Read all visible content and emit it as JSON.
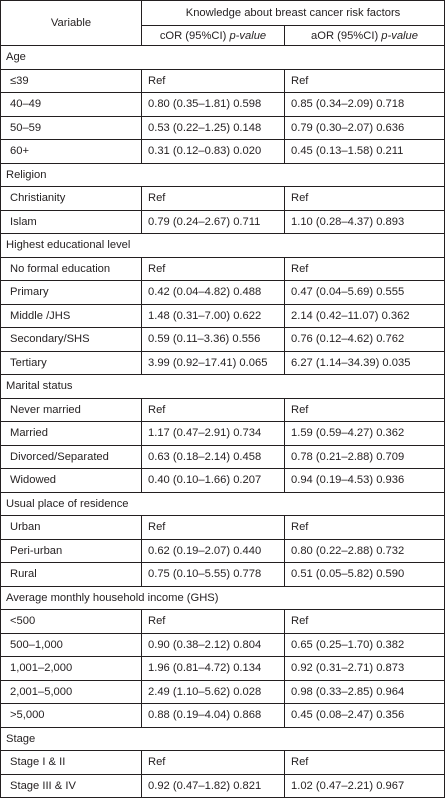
{
  "header": {
    "variable": "Variable",
    "group": "Knowledge about breast cancer risk factors",
    "col_cor": "cOR (95%CI) ",
    "col_aor": "aOR (95%CI) ",
    "pvalue": "p-value"
  },
  "rows": [
    {
      "type": "section",
      "label": "Age"
    },
    {
      "type": "data",
      "label": "≤39",
      "cor": "Ref",
      "aor": "Ref"
    },
    {
      "type": "data",
      "label": "40–49",
      "cor": "0.80 (0.35–1.81) 0.598",
      "aor": "0.85 (0.34–2.09) 0.718"
    },
    {
      "type": "data",
      "label": "50–59",
      "cor": "0.53 (0.22–1.25) 0.148",
      "aor": "0.79 (0.30–2.07) 0.636"
    },
    {
      "type": "data",
      "label": "60+",
      "cor": "0.31 (0.12–0.83) 0.020",
      "aor": "0.45 (0.13–1.58) 0.211"
    },
    {
      "type": "section",
      "label": "Religion"
    },
    {
      "type": "data",
      "label": "Christianity",
      "cor": "Ref",
      "aor": "Ref"
    },
    {
      "type": "data",
      "label": "Islam",
      "cor": "0.79 (0.24–2.67) 0.711",
      "aor": "1.10 (0.28–4.37) 0.893"
    },
    {
      "type": "section",
      "label": "Highest educational level"
    },
    {
      "type": "data",
      "label": "No formal education",
      "cor": "Ref",
      "aor": "Ref"
    },
    {
      "type": "data",
      "label": "Primary",
      "cor": "0.42 (0.04–4.82) 0.488",
      "aor": "0.47 (0.04–5.69) 0.555"
    },
    {
      "type": "data",
      "label": "Middle /JHS",
      "cor": "1.48 (0.31–7.00) 0.622",
      "aor": "2.14 (0.42–11.07) 0.362"
    },
    {
      "type": "data",
      "label": "Secondary/SHS",
      "cor": "0.59 (0.11–3.36) 0.556",
      "aor": "0.76 (0.12–4.62) 0.762"
    },
    {
      "type": "data",
      "label": "Tertiary",
      "cor": "3.99 (0.92–17.41) 0.065",
      "aor": "6.27 (1.14–34.39) 0.035"
    },
    {
      "type": "section",
      "label": "Marital status"
    },
    {
      "type": "data",
      "label": "Never married",
      "cor": "Ref",
      "aor": "Ref"
    },
    {
      "type": "data",
      "label": "Married",
      "cor": "1.17 (0.47–2.91) 0.734",
      "aor": "1.59 (0.59–4.27) 0.362"
    },
    {
      "type": "data",
      "label": "Divorced/Separated",
      "cor": "0.63 (0.18–2.14) 0.458",
      "aor": "0.78 (0.21–2.88) 0.709"
    },
    {
      "type": "data",
      "label": "Widowed",
      "cor": "0.40 (0.10–1.66) 0.207",
      "aor": "0.94 (0.19–4.53) 0.936"
    },
    {
      "type": "section",
      "label": "Usual place of residence"
    },
    {
      "type": "data",
      "label": "Urban",
      "cor": "Ref",
      "aor": "Ref"
    },
    {
      "type": "data",
      "label": "Peri-urban",
      "cor": "0.62 (0.19–2.07) 0.440",
      "aor": "0.80 (0.22–2.88) 0.732"
    },
    {
      "type": "data",
      "label": "Rural",
      "cor": "0.75 (0.10–5.55) 0.778",
      "aor": "0.51 (0.05–5.82) 0.590"
    },
    {
      "type": "section",
      "label": "Average monthly household income (GHS)"
    },
    {
      "type": "data",
      "label": "<500",
      "cor": "Ref",
      "aor": "Ref"
    },
    {
      "type": "data",
      "label": "500–1,000",
      "cor": "0.90 (0.38–2.12) 0.804",
      "aor": "0.65 (0.25–1.70) 0.382"
    },
    {
      "type": "data",
      "label": "1,001–2,000",
      "cor": "1.96 (0.81–4.72) 0.134",
      "aor": "0.92 (0.31–2.71) 0.873"
    },
    {
      "type": "data",
      "label": "2,001–5,000",
      "cor": "2.49 (1.10–5.62) 0.028",
      "aor": "0.98 (0.33–2.85) 0.964"
    },
    {
      "type": "data",
      "label": ">5,000",
      "cor": "0.88 (0.19–4.04) 0.868",
      "aor": "0.45 (0.08–2.47) 0.356"
    },
    {
      "type": "section",
      "label": "Stage"
    },
    {
      "type": "data",
      "label": "Stage I & II",
      "cor": "Ref",
      "aor": "Ref"
    },
    {
      "type": "data",
      "label": "Stage III & IV",
      "cor": "0.92 (0.47–1.82) 0.821",
      "aor": "1.02 (0.47–2.21) 0.967"
    }
  ]
}
